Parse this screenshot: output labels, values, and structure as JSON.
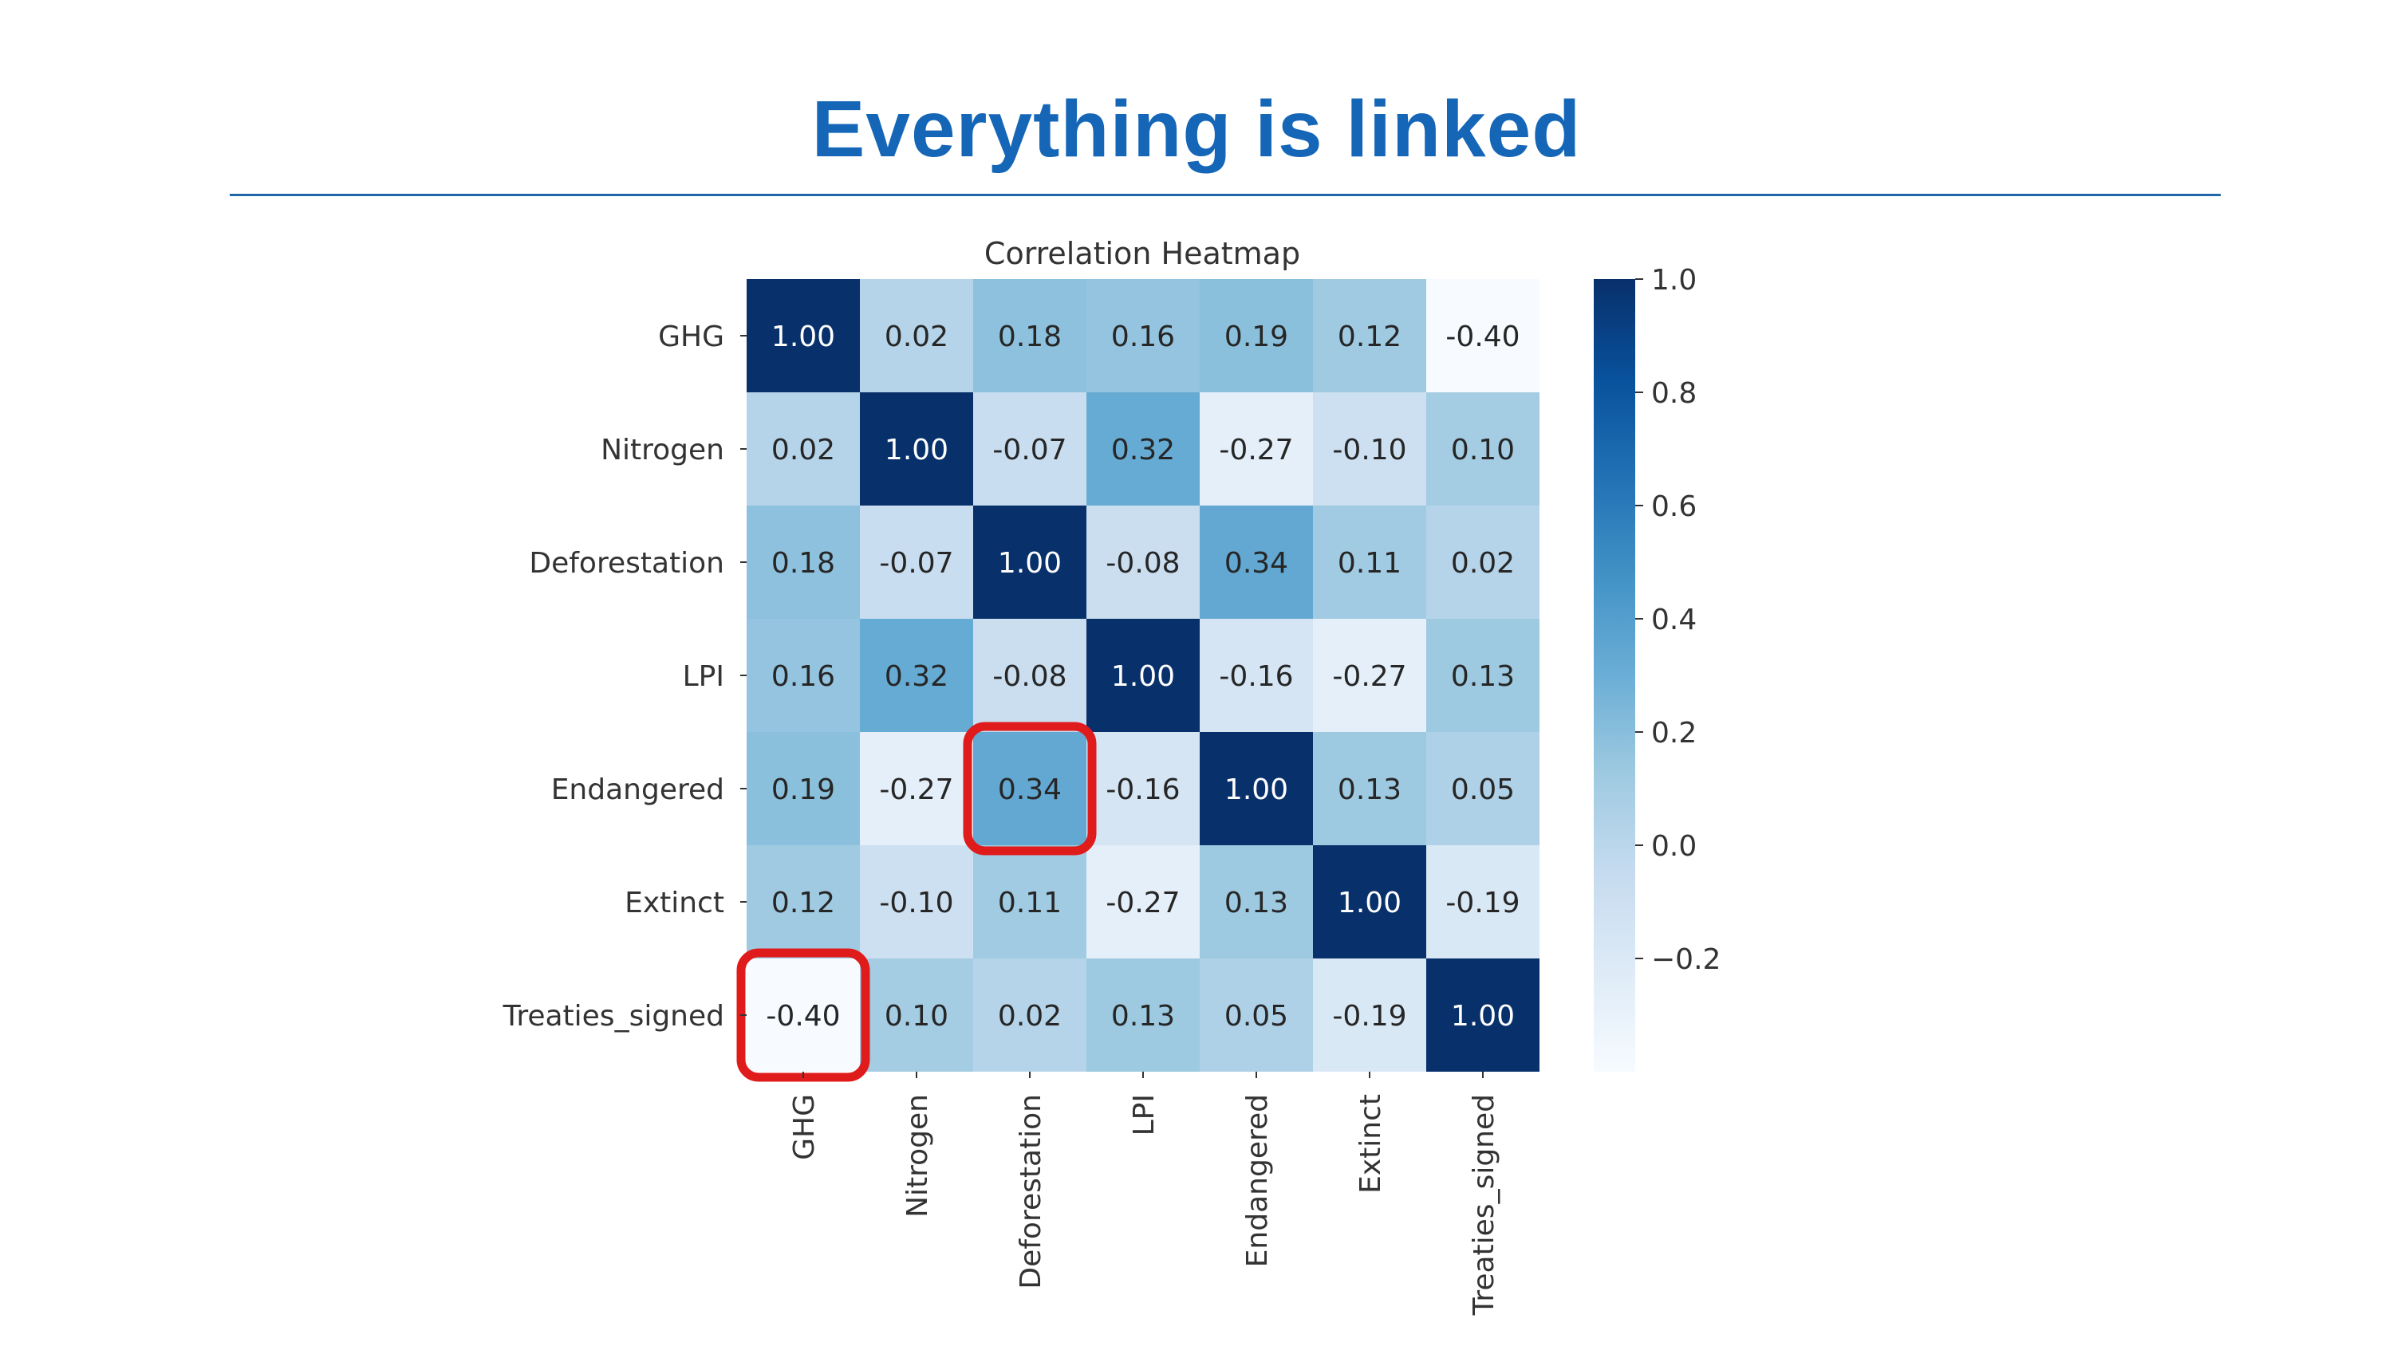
{
  "slide": {
    "title": "Everything is linked",
    "title_color": "#1566b7",
    "rule_color": "#1f66aa"
  },
  "chart_data": {
    "type": "heatmap",
    "title": "Correlation Heatmap",
    "rows": [
      "GHG",
      "Nitrogen",
      "Deforestation",
      "LPI",
      "Endangered",
      "Extinct",
      "Treaties_signed"
    ],
    "columns": [
      "GHG",
      "Nitrogen",
      "Deforestation",
      "LPI",
      "Endangered",
      "Extinct",
      "Treaties_signed"
    ],
    "values": [
      [
        1.0,
        0.02,
        0.18,
        0.16,
        0.19,
        0.12,
        -0.4
      ],
      [
        0.02,
        1.0,
        -0.07,
        0.32,
        -0.27,
        -0.1,
        0.1
      ],
      [
        0.18,
        -0.07,
        1.0,
        -0.08,
        0.34,
        0.11,
        0.02
      ],
      [
        0.16,
        0.32,
        -0.08,
        1.0,
        -0.16,
        -0.27,
        0.13
      ],
      [
        0.19,
        -0.27,
        0.34,
        -0.16,
        1.0,
        0.13,
        0.05
      ],
      [
        0.12,
        -0.1,
        0.11,
        -0.27,
        0.13,
        1.0,
        -0.19
      ],
      [
        -0.4,
        0.1,
        0.02,
        0.13,
        0.05,
        -0.19,
        1.0
      ]
    ],
    "value_format": "2 decimals",
    "colormap": "Blues",
    "vmin": -0.4,
    "vmax": 1.0,
    "colorbar": {
      "ticks": [
        1.0,
        0.8,
        0.6,
        0.4,
        0.2,
        0.0,
        -0.2
      ],
      "tick_labels": [
        "1.0",
        "0.8",
        "0.6",
        "0.4",
        "0.2",
        "0.0",
        "−0.2"
      ]
    },
    "highlights": [
      {
        "row": "Endangered",
        "column": "Deforestation"
      },
      {
        "row": "Treaties_signed",
        "column": "GHG"
      }
    ],
    "highlight_color": "#e01b1b"
  }
}
